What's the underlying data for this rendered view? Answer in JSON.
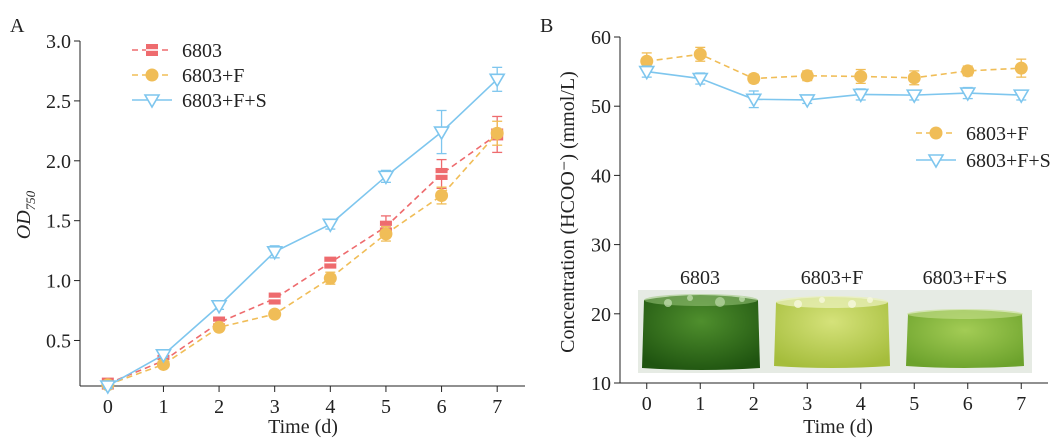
{
  "chart_data": [
    {
      "panel_label": "A",
      "type": "line",
      "xlabel": "Time (d)",
      "ylabel_main": "OD",
      "ylabel_sub": "750",
      "x": [
        0,
        1,
        2,
        3,
        4,
        5,
        6,
        7
      ],
      "xlim": [
        -0.5,
        7.5
      ],
      "ylim": [
        0.12,
        3.0
      ],
      "xticks": [
        "0",
        "1",
        "2",
        "3",
        "4",
        "5",
        "6",
        "7"
      ],
      "yticks": [
        0.5,
        1.0,
        1.5,
        2.0,
        2.5,
        3.0
      ],
      "ytick_labels": [
        "0.5",
        "1.0",
        "1.5",
        "2.0",
        "2.5",
        "3.0"
      ],
      "legend_position": "top-left",
      "series": [
        {
          "name": "6803",
          "color": "#ee6b6e",
          "marker": "square",
          "linestyle": "dashed",
          "values": [
            0.14,
            0.33,
            0.65,
            0.85,
            1.15,
            1.45,
            1.89,
            2.22
          ],
          "errors": [
            0.03,
            0.03,
            0.04,
            0.03,
            0.04,
            0.09,
            0.12,
            0.15
          ]
        },
        {
          "name": "6803+F",
          "color": "#f0bd57",
          "marker": "circle",
          "linestyle": "dashed",
          "values": [
            0.13,
            0.3,
            0.61,
            0.72,
            1.02,
            1.39,
            1.71,
            2.23
          ],
          "errors": [
            0.02,
            0.02,
            0.03,
            0.03,
            0.05,
            0.06,
            0.07,
            0.1
          ]
        },
        {
          "name": "6803+F+S",
          "color": "#7ec6ee",
          "marker": "triangle-down",
          "linestyle": "solid",
          "values": [
            0.12,
            0.38,
            0.79,
            1.24,
            1.47,
            1.87,
            2.24,
            2.68
          ],
          "errors": [
            0.02,
            0.02,
            0.03,
            0.05,
            0.04,
            0.05,
            0.18,
            0.1
          ]
        }
      ]
    },
    {
      "panel_label": "B",
      "type": "line",
      "xlabel": "Time (d)",
      "ylabel": "Concentration (HCOO⁻) (mmol/L)",
      "x": [
        0,
        1,
        2,
        3,
        4,
        5,
        6,
        7
      ],
      "xlim": [
        -0.5,
        7.5
      ],
      "ylim": [
        10,
        60
      ],
      "xticks": [
        "0",
        "1",
        "2",
        "3",
        "4",
        "5",
        "6",
        "7"
      ],
      "yticks": [
        10,
        20,
        30,
        40,
        50,
        60
      ],
      "ytick_labels": [
        "10",
        "20",
        "30",
        "40",
        "50",
        "60"
      ],
      "legend_position": "right",
      "series": [
        {
          "name": "6803+F",
          "color": "#f0bd57",
          "marker": "circle",
          "linestyle": "dashed",
          "values": [
            56.5,
            57.5,
            54.0,
            54.4,
            54.3,
            54.1,
            55.1,
            55.5
          ],
          "errors": [
            1.2,
            1.0,
            0.6,
            0.7,
            1.0,
            1.0,
            0.7,
            1.3
          ]
        },
        {
          "name": "6803+F+S",
          "color": "#7ec6ee",
          "marker": "triangle-down",
          "linestyle": "solid",
          "values": [
            55.0,
            54.0,
            51.0,
            50.9,
            51.7,
            51.6,
            51.9,
            51.6
          ],
          "errors": [
            0.8,
            0.8,
            1.2,
            0.5,
            0.8,
            0.7,
            0.8,
            0.7
          ]
        }
      ],
      "photo_inset": {
        "labels": [
          "6803",
          "6803+F",
          "6803+F+S"
        ],
        "colors": [
          "#2f6e1c",
          "#b9cf4c",
          "#7fb339"
        ]
      }
    }
  ]
}
